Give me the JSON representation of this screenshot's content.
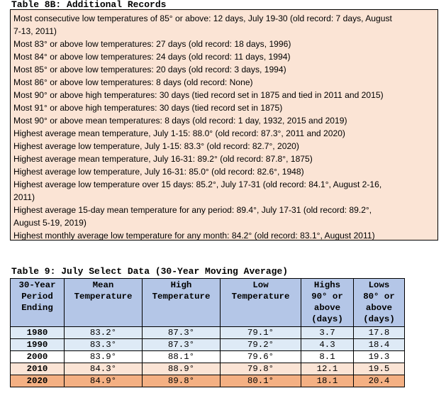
{
  "table8b": {
    "title": "Table 8B: Additional Records",
    "records": [
      "Most consecutive low temperatures of 85° or above: 12 days, July 19-30 (old record: 7 days, August",
      "7-13, 2011)",
      "Most 83° or above low temperatures: 27 days (old record: 18 days, 1996)",
      "Most 84° or above low temperatures: 24 days (old record: 11 days, 1994)",
      "Most 85° or above low temperatures: 20 days (old record: 3 days, 1994)",
      "Most 86° or above low temperatures: 8 days (old record: None)",
      "Most 90° or above high temperatures: 30 days (tied record set in 1875 and tied in 2011 and 2015)",
      "Most 91° or above high temperatures: 30 days (tied record set in 1875)",
      "Most 90° or above mean temperatures: 8 days (old record: 1 day, 1932, 2015 and 2019)",
      "Highest average mean temperature, July 1-15: 88.0° (old record: 87.3°, 2011 and 2020)",
      "Highest average low temperature, July 1-15: 83.3° (old record: 82.7°, 2020)",
      "Highest average mean temperature, July 16-31: 89.2° (old record: 87.8°, 1875)",
      "Highest average low temperature, July 16-31: 85.0° (old record: 82.6°, 1948)",
      "Highest average low temperature over 15 days: 85.2°, July 17-31 (old record: 84.1°, August 2-16,",
      "2011)",
      "Highest average 15-day mean temperature for any period: 89.4°, July 17-31 (old record: 89.2°,",
      "August 5-19, 2019)",
      "Highest monthly average low temperature for any month: 84.2° (old record: 83.1°, August 2011)"
    ]
  },
  "table9": {
    "title": "Table 9: July Select Data (30-Year Moving Average)",
    "headers": [
      [
        "30-Year",
        "Period",
        "Ending"
      ],
      [
        "Mean",
        "Temperature"
      ],
      [
        "High",
        "Temperature"
      ],
      [
        "Low",
        "Temperature"
      ],
      [
        "Highs",
        "90° or",
        "above",
        "(days)"
      ],
      [
        "Lows",
        "80° or",
        "above",
        "(days)"
      ]
    ],
    "rows": [
      [
        "1980",
        "83.2°",
        "87.3°",
        "79.1°",
        "3.7",
        "17.8"
      ],
      [
        "1990",
        "83.3°",
        "87.3°",
        "79.2°",
        "4.3",
        "18.4"
      ],
      [
        "2000",
        "83.9°",
        "88.1°",
        "79.6°",
        "8.1",
        "19.3"
      ],
      [
        "2010",
        "84.3°",
        "88.9°",
        "79.8°",
        "12.1",
        "19.5"
      ],
      [
        "2020",
        "84.9°",
        "89.8°",
        "80.1°",
        "18.1",
        "20.4"
      ]
    ]
  },
  "colors": {
    "records_bg": "#fbe4d5",
    "header_bg": "#b4c6e7",
    "row_light_blue": "#deeaf6",
    "row_white": "#ffffff",
    "row_light_peach": "#fbe4d5",
    "row_orange": "#f4b083"
  }
}
